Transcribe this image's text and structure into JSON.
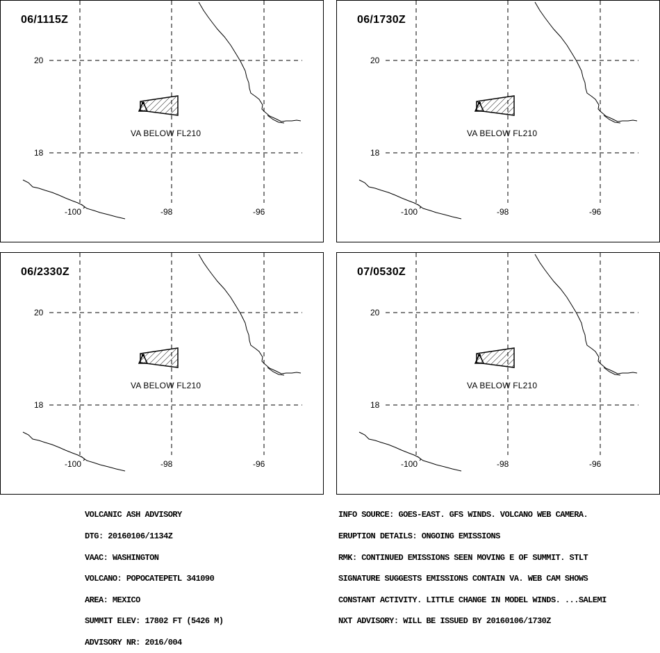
{
  "panels": [
    {
      "time_label": "06/1115Z",
      "ash_label": "VA BELOW FL210"
    },
    {
      "time_label": "06/1730Z",
      "ash_label": "VA BELOW FL210"
    },
    {
      "time_label": "06/2330Z",
      "ash_label": "VA BELOW FL210"
    },
    {
      "time_label": "07/0530Z",
      "ash_label": "VA BELOW FL210"
    }
  ],
  "grid": {
    "lat_labels": [
      "20",
      "18"
    ],
    "lon_labels": [
      "-100",
      "-98",
      "-96"
    ]
  },
  "advisory_left": [
    "VOLCANIC ASH ADVISORY",
    "DTG: 20160106/1134Z",
    "VAAC: WASHINGTON",
    "VOLCANO: POPOCATEPETL 341090",
    "AREA: MEXICO",
    "SUMMIT ELEV: 17802 FT (5426 M)",
    "ADVISORY NR: 2016/004"
  ],
  "advisory_right": [
    "INFO SOURCE: GOES-EAST. GFS WINDS. VOLCANO WEB CAMERA.",
    "ERUPTION DETAILS: ONGOING EMISSIONS",
    "RMK: CONTINUED EMISSIONS SEEN MOVING E OF SUMMIT. STLT",
    "SIGNATURE SUGGESTS EMISSIONS CONTAIN VA. WEB CAM SHOWS",
    "CONSTANT ACTIVITY. LITTLE CHANGE IN MODEL WINDS. ...SALEMI",
    "NXT ADVISORY: WILL BE ISSUED BY 20160106/1730Z"
  ]
}
